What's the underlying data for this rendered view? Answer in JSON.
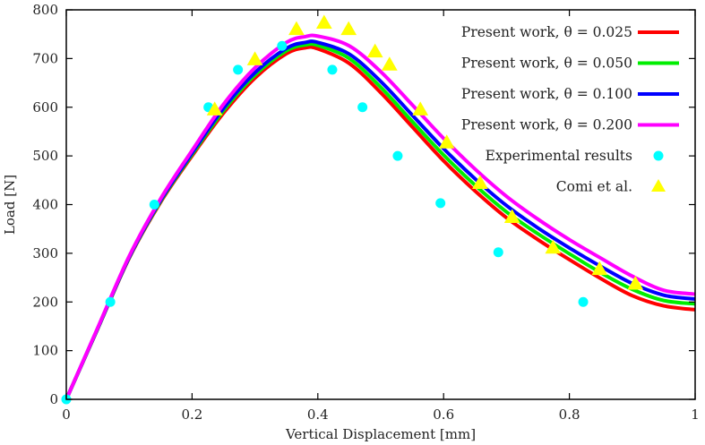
{
  "chart_data": {
    "type": "line",
    "title": "",
    "xlabel": "Vertical Displacement [mm]",
    "ylabel": "Load [N]",
    "xlim": [
      0,
      1
    ],
    "ylim": [
      0,
      800
    ],
    "xticks": [
      0,
      0.2,
      0.4,
      0.6,
      0.8,
      1
    ],
    "xtick_labels": [
      "0",
      "0.2",
      "0.4",
      "0.6",
      "0.8",
      "1"
    ],
    "yticks": [
      0,
      100,
      200,
      300,
      400,
      500,
      600,
      700,
      800
    ],
    "ytick_labels": [
      "0",
      "100",
      "200",
      "300",
      "400",
      "500",
      "600",
      "700",
      "800"
    ],
    "grid": false,
    "legend_position": "top-right",
    "series": [
      {
        "name": "Present work, θ = 0.025",
        "kind": "line",
        "color": "#ff0000",
        "x": [
          0,
          0.05,
          0.1,
          0.15,
          0.2,
          0.25,
          0.3,
          0.35,
          0.38,
          0.4,
          0.45,
          0.5,
          0.55,
          0.6,
          0.65,
          0.7,
          0.75,
          0.8,
          0.85,
          0.9,
          0.95,
          1.0
        ],
        "y": [
          0,
          145,
          290,
          405,
          500,
          588,
          660,
          710,
          722,
          720,
          690,
          630,
          560,
          490,
          428,
          373,
          328,
          287,
          248,
          213,
          192,
          184
        ]
      },
      {
        "name": "Present work, θ = 0.050",
        "kind": "line",
        "color": "#00ee00",
        "x": [
          0,
          0.05,
          0.1,
          0.15,
          0.2,
          0.25,
          0.3,
          0.35,
          0.38,
          0.4,
          0.45,
          0.5,
          0.55,
          0.6,
          0.65,
          0.7,
          0.75,
          0.8,
          0.85,
          0.9,
          0.95,
          1.0
        ],
        "y": [
          0,
          145,
          291,
          407,
          503,
          593,
          666,
          716,
          728,
          727,
          700,
          641,
          571,
          502,
          440,
          385,
          340,
          299,
          260,
          226,
          203,
          196
        ]
      },
      {
        "name": "Present work, θ = 0.100",
        "kind": "line",
        "color": "#0000ff",
        "x": [
          0,
          0.05,
          0.1,
          0.15,
          0.2,
          0.25,
          0.3,
          0.35,
          0.38,
          0.4,
          0.45,
          0.5,
          0.55,
          0.6,
          0.65,
          0.7,
          0.75,
          0.8,
          0.85,
          0.9,
          0.95,
          1.0
        ],
        "y": [
          0,
          146,
          292,
          409,
          506,
          598,
          671,
          721,
          733,
          733,
          709,
          653,
          584,
          515,
          453,
          398,
          352,
          311,
          273,
          238,
          214,
          206
        ]
      },
      {
        "name": "Present work, θ = 0.200",
        "kind": "line",
        "color": "#ff00ff",
        "x": [
          0,
          0.05,
          0.1,
          0.15,
          0.2,
          0.25,
          0.3,
          0.35,
          0.38,
          0.4,
          0.45,
          0.5,
          0.55,
          0.6,
          0.65,
          0.7,
          0.75,
          0.8,
          0.85,
          0.9,
          0.95,
          1.0
        ],
        "y": [
          0,
          147,
          294,
          412,
          511,
          606,
          681,
          733,
          745,
          746,
          726,
          673,
          605,
          536,
          473,
          417,
          370,
          328,
          290,
          253,
          224,
          216
        ]
      },
      {
        "name": "Experimental results",
        "kind": "scatter",
        "marker": "circle",
        "color": "#00ffff",
        "x": [
          0,
          0.07,
          0.14,
          0.226,
          0.273,
          0.343,
          0.423,
          0.471,
          0.527,
          0.595,
          0.687,
          0.822
        ],
        "y": [
          0,
          200,
          400,
          600,
          677,
          726,
          677,
          600,
          500,
          403,
          302,
          200
        ]
      },
      {
        "name": "Comi et al.",
        "kind": "scatter",
        "marker": "triangle",
        "color": "#ffff00",
        "x": [
          0.236,
          0.3,
          0.366,
          0.41,
          0.449,
          0.491,
          0.514,
          0.563,
          0.605,
          0.658,
          0.709,
          0.774,
          0.848,
          0.905
        ],
        "y": [
          594,
          697,
          759,
          772,
          759,
          713,
          686,
          594,
          526,
          443,
          373,
          310,
          266,
          236
        ]
      }
    ]
  }
}
